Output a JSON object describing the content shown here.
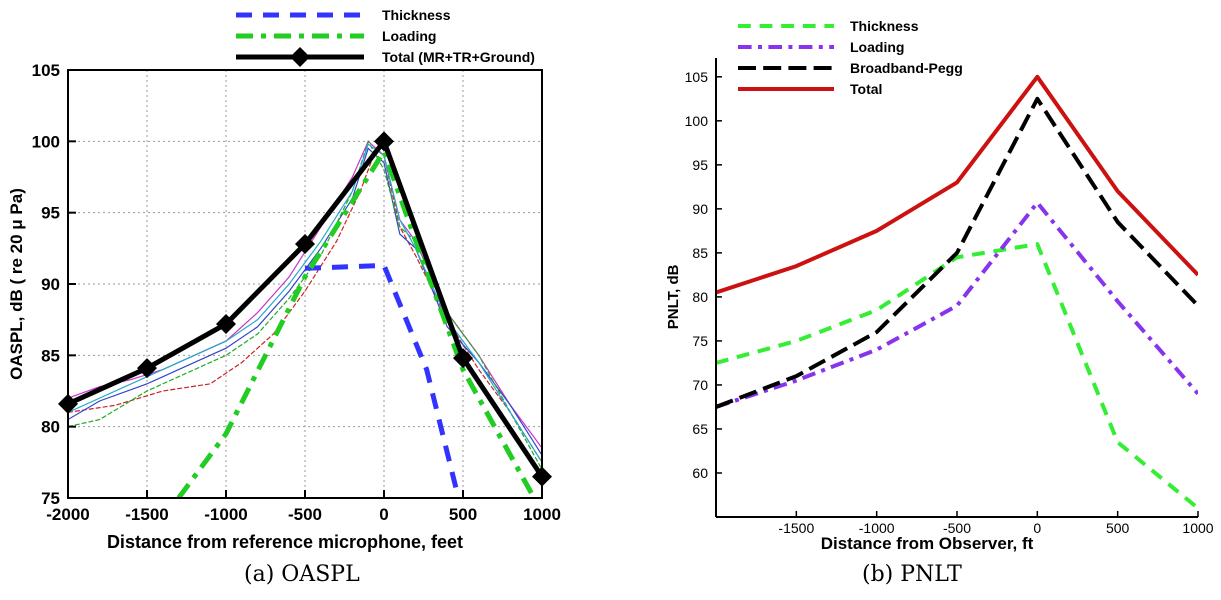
{
  "chart_data": [
    {
      "type": "line",
      "caption": "(a) OASPL",
      "xlabel": "Distance from reference microphone, feet",
      "ylabel": "OASPL, dB ( re 20 μ Pa)",
      "xlim": [
        -2000,
        1000
      ],
      "ylim": [
        75,
        105
      ],
      "xticks": [
        -2000,
        -1500,
        -1000,
        -500,
        0,
        500,
        1000
      ],
      "yticks": [
        75,
        80,
        85,
        90,
        95,
        100,
        105
      ],
      "grid": true,
      "legend_position": "top",
      "series": [
        {
          "name": "Thickness",
          "color": "#3333ff",
          "dash": "dashed",
          "x": [
            -500,
            0,
            270,
            460
          ],
          "y": [
            91.1,
            91.3,
            84.0,
            75.5
          ]
        },
        {
          "name": "Loading",
          "color": "#22cc22",
          "dash": "dashdot",
          "x": [
            -1300,
            -1000,
            -500,
            0,
            250,
            500,
            1000
          ],
          "y": [
            75.0,
            79.5,
            90.5,
            99.3,
            91.5,
            84.0,
            74.0
          ]
        },
        {
          "name": "Total (MR+TR+Ground)",
          "color": "#000000",
          "dash": "solid",
          "marker": "diamond",
          "x": [
            -2000,
            -1500,
            -1000,
            -500,
            0,
            500,
            1000
          ],
          "y": [
            81.6,
            84.1,
            87.2,
            92.8,
            100.0,
            84.8,
            76.5
          ]
        }
      ],
      "measured_traces": [
        {
          "color": "#cc33cc",
          "x": [
            -2000,
            -1800,
            -1600,
            -1400,
            -1200,
            -1000,
            -800,
            -600,
            -400,
            -200,
            -100,
            0,
            100,
            200,
            400,
            600,
            800,
            1000
          ],
          "y": [
            82.0,
            82.8,
            83.3,
            84.0,
            85.0,
            86.0,
            88.0,
            90.5,
            94.0,
            97.5,
            100.0,
            99.0,
            94.5,
            93.0,
            88.0,
            85.0,
            81.5,
            78.5
          ]
        },
        {
          "color": "#cc2222",
          "x": [
            -2000,
            -1700,
            -1400,
            -1100,
            -900,
            -700,
            -500,
            -300,
            -150,
            -50,
            0,
            100,
            200,
            400,
            600,
            800,
            1000
          ],
          "y": [
            81.0,
            81.5,
            82.5,
            83.0,
            84.5,
            86.5,
            89.5,
            93.0,
            96.5,
            99.5,
            99.0,
            94.0,
            92.0,
            87.5,
            84.0,
            81.0,
            77.5
          ]
        },
        {
          "color": "#3344cc",
          "x": [
            -2000,
            -1800,
            -1500,
            -1200,
            -1000,
            -800,
            -600,
            -400,
            -200,
            -100,
            0,
            100,
            200,
            400,
            600,
            800,
            1000
          ],
          "y": [
            80.5,
            81.8,
            83.0,
            84.5,
            85.5,
            87.0,
            89.5,
            92.5,
            96.0,
            99.5,
            98.5,
            93.5,
            92.5,
            87.0,
            84.5,
            81.5,
            78.0
          ]
        },
        {
          "color": "#22aa22",
          "x": [
            -2000,
            -1800,
            -1500,
            -1200,
            -1000,
            -800,
            -600,
            -400,
            -200,
            -100,
            0,
            100,
            200,
            400,
            600,
            800,
            1000
          ],
          "y": [
            80.0,
            80.5,
            82.5,
            84.0,
            85.0,
            86.5,
            89.0,
            92.0,
            96.5,
            100.0,
            98.0,
            94.0,
            93.0,
            88.0,
            85.0,
            81.0,
            77.0
          ]
        },
        {
          "color": "#22aacc",
          "x": [
            -2000,
            -1800,
            -1500,
            -1200,
            -1000,
            -800,
            -600,
            -400,
            -200,
            -100,
            0,
            100,
            200,
            400,
            600,
            800,
            1000
          ],
          "y": [
            81.0,
            82.0,
            83.5,
            85.0,
            86.0,
            87.5,
            90.0,
            93.0,
            96.5,
            99.8,
            99.0,
            94.5,
            92.5,
            87.5,
            84.5,
            81.0,
            77.5
          ]
        }
      ]
    },
    {
      "type": "line",
      "caption": "(b) PNLT",
      "xlabel": "Distance from Observer, ft",
      "ylabel": "PNLT, dB",
      "xlim": [
        -2000,
        1000
      ],
      "ylim": [
        55,
        106
      ],
      "xticks": [
        -1500,
        -1000,
        -500,
        0,
        500,
        1000
      ],
      "yticks": [
        60,
        65,
        70,
        75,
        80,
        85,
        90,
        95,
        100,
        105
      ],
      "grid": false,
      "legend_position": "top-left",
      "series": [
        {
          "name": "Thickness",
          "color": "#33ee33",
          "dash": "dashed",
          "x": [
            -2000,
            -1500,
            -1000,
            -500,
            0,
            500,
            1000
          ],
          "y": [
            72.5,
            75.0,
            78.5,
            84.5,
            86.0,
            63.5,
            56.0
          ]
        },
        {
          "name": "Loading",
          "color": "#8833ee",
          "dash": "dashdot",
          "x": [
            -2000,
            -1500,
            -1000,
            -500,
            0,
            500,
            1000
          ],
          "y": [
            67.5,
            70.5,
            74.0,
            79.0,
            90.7,
            79.5,
            69.0
          ]
        },
        {
          "name": "Broadband-Pegg",
          "color": "#000000",
          "dash": "longdash",
          "x": [
            -2000,
            -1500,
            -1000,
            -500,
            0,
            500,
            1000
          ],
          "y": [
            67.5,
            71.0,
            76.0,
            85.0,
            102.5,
            88.5,
            79.0
          ]
        },
        {
          "name": "Total",
          "color": "#cc1111",
          "dash": "solid",
          "x": [
            -2000,
            -1500,
            -1000,
            -500,
            0,
            500,
            1000
          ],
          "y": [
            80.5,
            83.5,
            87.5,
            93.0,
            105.0,
            92.0,
            82.5
          ]
        }
      ]
    }
  ]
}
